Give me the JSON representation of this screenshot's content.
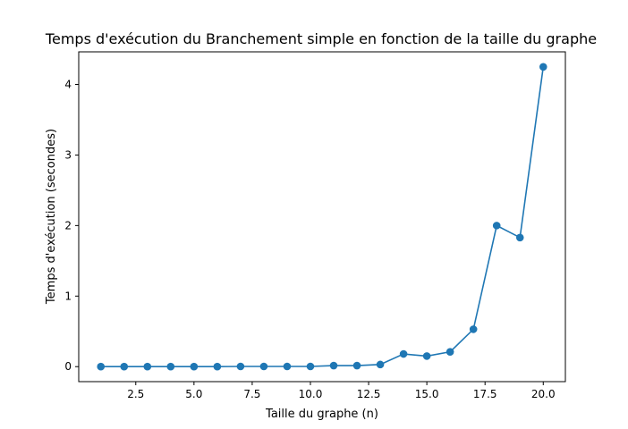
{
  "chart_data": {
    "type": "line",
    "title": "Temps d'exécution du Branchement simple en fonction de la taille du graphe",
    "xlabel": "Taille du graphe (n)",
    "ylabel": "Temps d'exécution (secondes)",
    "xlim": [
      0.05,
      20.95
    ],
    "ylim": [
      -0.2125,
      4.4625
    ],
    "xticks": [
      2.5,
      5.0,
      7.5,
      10.0,
      12.5,
      15.0,
      17.5,
      20.0
    ],
    "xtick_labels": [
      "2.5",
      "5.0",
      "7.5",
      "10.0",
      "12.5",
      "15.0",
      "17.5",
      "20.0"
    ],
    "yticks": [
      0,
      1,
      2,
      3,
      4
    ],
    "ytick_labels": [
      "0",
      "1",
      "2",
      "3",
      "4"
    ],
    "grid": false,
    "marker": "circle",
    "color": "#1f77b4",
    "series": [
      {
        "x": [
          1,
          2,
          3,
          4,
          5,
          6,
          7,
          8,
          9,
          10,
          11,
          12,
          13,
          14,
          15,
          16,
          17,
          18,
          19,
          20
        ],
        "values": [
          0.0,
          0.0,
          0.0,
          0.0,
          0.0,
          0.0,
          0.003,
          0.003,
          0.003,
          0.003,
          0.015,
          0.015,
          0.03,
          0.18,
          0.15,
          0.21,
          0.53,
          2.0,
          1.83,
          4.25
        ]
      }
    ]
  }
}
